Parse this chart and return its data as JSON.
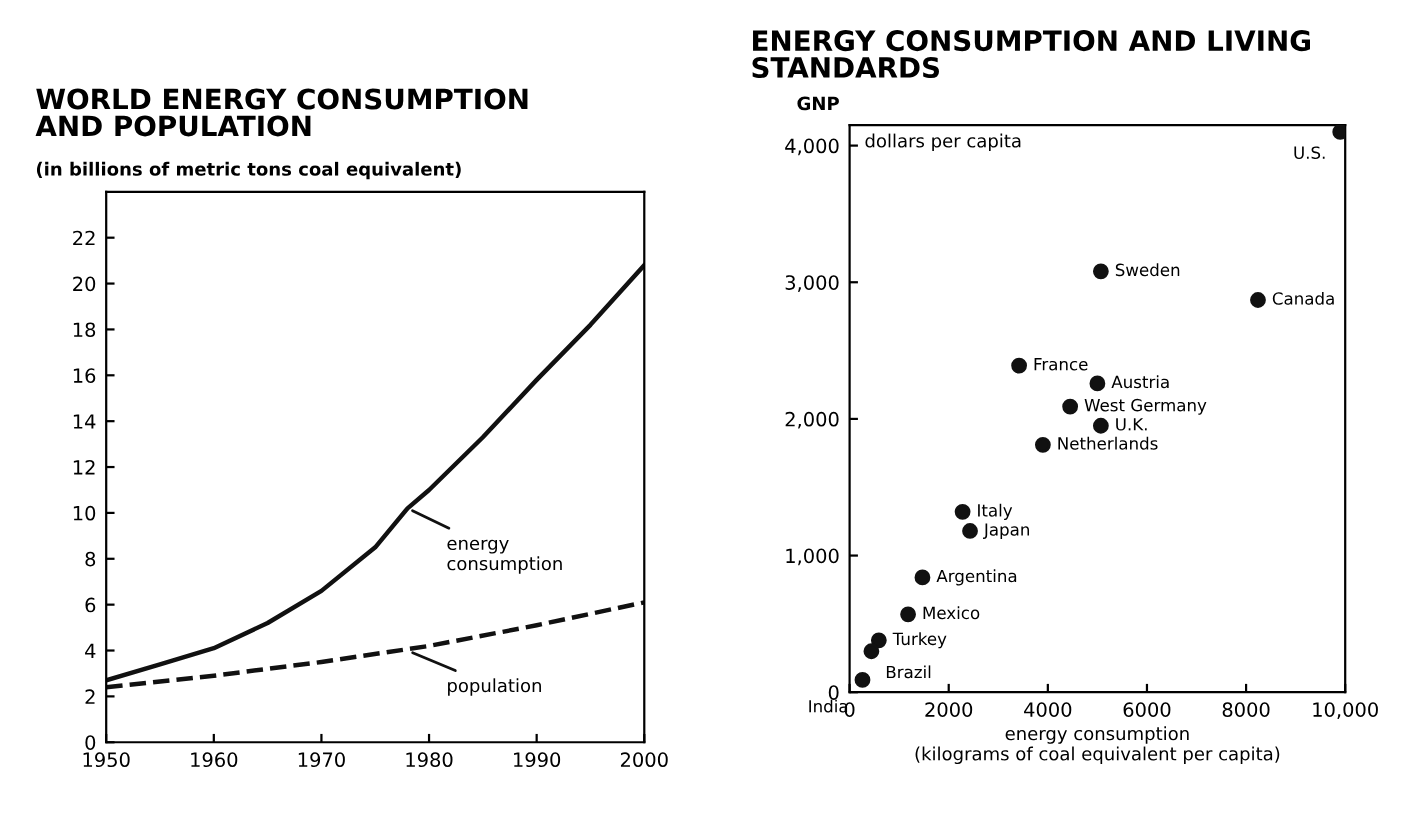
{
  "chart_data": [
    {
      "type": "line",
      "title": "WORLD ENERGY CONSUMPTION\nAND POPULATION",
      "subtitle": "(in billions of metric tons coal equivalent)",
      "x": [
        1950,
        1955,
        1960,
        1965,
        1970,
        1975,
        1978,
        1980,
        1985,
        1990,
        1995,
        2000
      ],
      "series": [
        {
          "color": "#111111",
          "line_style": "solid",
          "values": [
            2.7,
            3.4,
            4.1,
            5.2,
            6.6,
            8.5,
            10.2,
            11.0,
            13.3,
            15.8,
            18.2,
            20.8
          ]
        },
        {
          "color": "#111111",
          "line_style": "dashed",
          "x": [
            1950,
            1960,
            1970,
            1980,
            1990,
            2000
          ],
          "values": [
            2.4,
            2.9,
            3.5,
            4.2,
            5.1,
            6.1
          ]
        }
      ],
      "xlim": [
        1950,
        2000
      ],
      "ylim": [
        0,
        24
      ],
      "xticks": [
        1950,
        1960,
        1970,
        1980,
        1990,
        2000
      ],
      "yticks": [
        0,
        2,
        4,
        6,
        8,
        10,
        12,
        14,
        16,
        18,
        20,
        22
      ],
      "annotations": [
        {
          "text": "energy\nconsumption",
          "x": 1978,
          "y": 10.2
        },
        {
          "text": "population",
          "x": 1978,
          "y": 4.0
        }
      ],
      "grid": false,
      "legend": false
    },
    {
      "type": "scatter",
      "title": "ENERGY CONSUMPTION AND LIVING\nSTANDARDS",
      "ylabel": "GNP",
      "xlabel": "energy consumption\n(kilograms of coal equivalent per capita)",
      "x": [
        9900,
        8240,
        5070,
        3420,
        5000,
        4450,
        5070,
        3900,
        2280,
        2430,
        1470,
        1180,
        590,
        440,
        260
      ],
      "series": [
        {
          "color": "#111111",
          "values": [
            4100,
            2870,
            3080,
            2390,
            2260,
            2090,
            1950,
            1810,
            1320,
            1180,
            840,
            570,
            380,
            300,
            90
          ]
        }
      ],
      "marker": "circle",
      "xlim": [
        0,
        10000
      ],
      "ylim": [
        0,
        4150
      ],
      "xticks": [
        0,
        2000,
        4000,
        6000,
        8000,
        {
          "value": 10000,
          "label": "10,000"
        }
      ],
      "yticks": [
        0,
        {
          "value": 1000,
          "label": "1,000"
        },
        {
          "value": 2000,
          "label": "2,000"
        },
        {
          "value": 3000,
          "label": "3,000"
        },
        {
          "value": 4000,
          "label": "4,000"
        }
      ],
      "annotations": [
        "dollars per capita",
        {
          "text": "U.S.",
          "x": 9900,
          "y": 4100
        },
        {
          "text": "Canada",
          "x": 8240,
          "y": 2870
        },
        {
          "text": "Sweden",
          "x": 5070,
          "y": 3080
        },
        {
          "text": "France",
          "x": 3420,
          "y": 2390
        },
        {
          "text": "Austria",
          "x": 5000,
          "y": 2260
        },
        {
          "text": "West Germany",
          "x": 4450,
          "y": 2090
        },
        {
          "text": "U.K.",
          "x": 5070,
          "y": 1950
        },
        {
          "text": "Netherlands",
          "x": 3900,
          "y": 1810
        },
        {
          "text": "Italy",
          "x": 2280,
          "y": 1320
        },
        {
          "text": "Japan",
          "x": 2430,
          "y": 1180
        },
        {
          "text": "Argentina",
          "x": 1470,
          "y": 840
        },
        {
          "text": "Mexico",
          "x": 1180,
          "y": 570
        },
        {
          "text": "Turkey",
          "x": 590,
          "y": 380
        },
        {
          "text": "Brazil",
          "x": 440,
          "y": 300
        },
        {
          "text": "India",
          "x": 260,
          "y": 90
        }
      ],
      "grid": false,
      "legend": false
    }
  ]
}
